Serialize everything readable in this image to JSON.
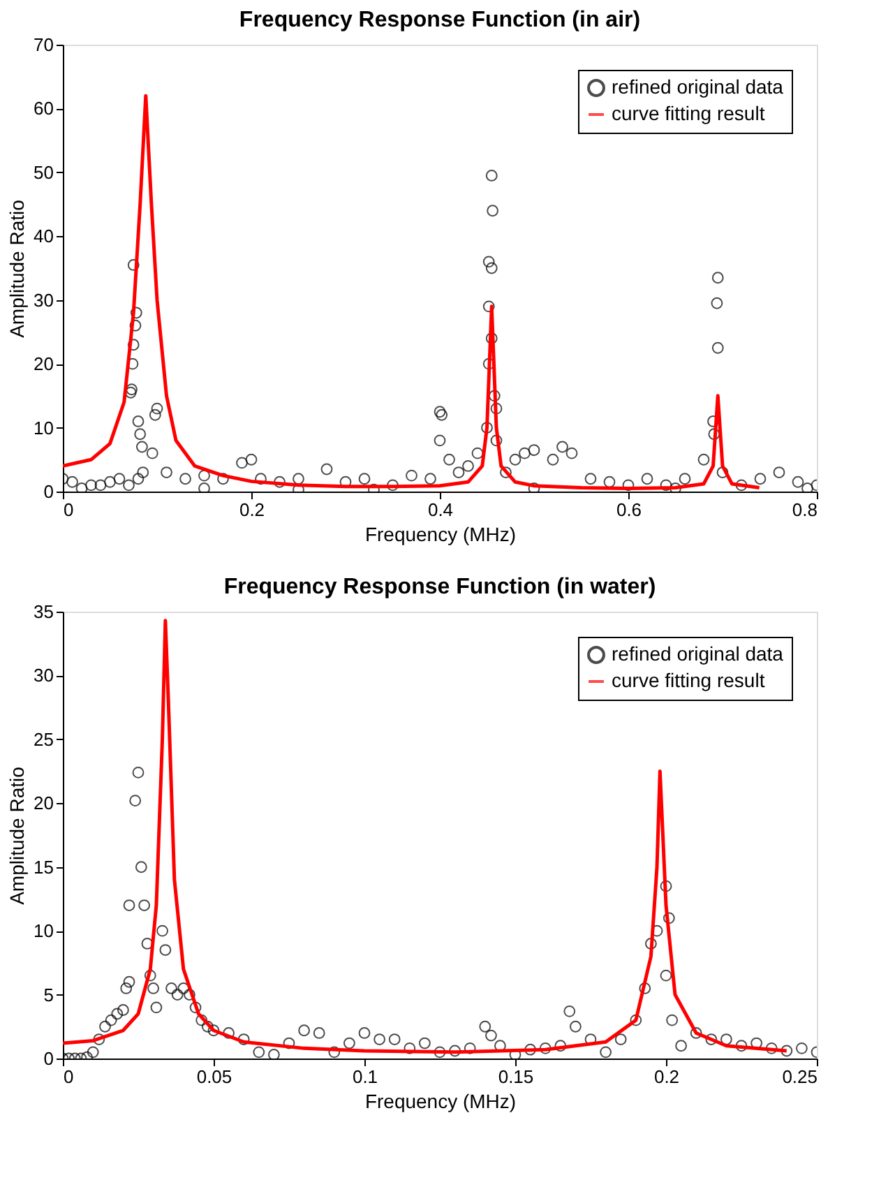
{
  "chart_data": [
    {
      "type": "scatter",
      "title": "Frequency Response Function (in air)",
      "xlabel": "Frequency (MHz)",
      "ylabel": "Amplitude Ratio",
      "xlim": [
        0,
        0.8
      ],
      "ylim": [
        0,
        70
      ],
      "xticks": [
        0,
        0.2,
        0.4,
        0.6,
        0.8
      ],
      "yticks": [
        0,
        10,
        20,
        30,
        40,
        50,
        60,
        70
      ],
      "grid": false,
      "legend": "top right",
      "series": [
        {
          "name": "refined original data",
          "marker": "circle",
          "color": "#000000",
          "x": [
            0,
            0.01,
            0.02,
            0.03,
            0.04,
            0.05,
            0.06,
            0.07,
            0.072,
            0.073,
            0.074,
            0.075,
            0.077,
            0.078,
            0.075,
            0.08,
            0.082,
            0.084,
            0.085,
            0.08,
            0.095,
            0.098,
            0.1,
            0.11,
            0.13,
            0.15,
            0.15,
            0.17,
            0.19,
            0.2,
            0.21,
            0.23,
            0.25,
            0.25,
            0.28,
            0.3,
            0.32,
            0.33,
            0.35,
            0.37,
            0.39,
            0.4,
            0.402,
            0.4,
            0.41,
            0.42,
            0.43,
            0.44,
            0.45,
            0.452,
            0.455,
            0.452,
            0.452,
            0.455,
            0.456,
            0.455,
            0.46,
            0.458,
            0.46,
            0.47,
            0.48,
            0.49,
            0.5,
            0.5,
            0.52,
            0.53,
            0.54,
            0.56,
            0.58,
            0.6,
            0.62,
            0.64,
            0.65,
            0.66,
            0.68,
            0.69,
            0.691,
            0.695,
            0.694,
            0.695,
            0.7,
            0.72,
            0.74,
            0.76,
            0.78,
            0.79,
            0.8
          ],
          "values": [
            2,
            1.5,
            0.5,
            1,
            1,
            1.5,
            2,
            1,
            15.5,
            16,
            20,
            23,
            26,
            28,
            35.5,
            11,
            9,
            7,
            3,
            2,
            6,
            12,
            13,
            3,
            2,
            2.5,
            0.5,
            2,
            4.5,
            5,
            2,
            1.5,
            2,
            0.3,
            3.5,
            1.5,
            2,
            0.3,
            1,
            2.5,
            2,
            12.5,
            12,
            8,
            5,
            3,
            4,
            6,
            10,
            20,
            24,
            29,
            36,
            35,
            44,
            49.5,
            13,
            15,
            8,
            3,
            5,
            6,
            6.5,
            0.5,
            5,
            7,
            6,
            2,
            1.5,
            1,
            2,
            1,
            0.5,
            2,
            5,
            11,
            9,
            22.5,
            29.5,
            33.5,
            3,
            1,
            2,
            3,
            1.5,
            0.5,
            1
          ]
        },
        {
          "name": "curve fitting result",
          "type": "line",
          "color": "#ff0000",
          "x": [
            0,
            0.03,
            0.05,
            0.065,
            0.075,
            0.082,
            0.088,
            0.094,
            0.1,
            0.11,
            0.12,
            0.14,
            0.17,
            0.2,
            0.25,
            0.3,
            0.35,
            0.4,
            0.43,
            0.445,
            0.45,
            0.455,
            0.46,
            0.465,
            0.48,
            0.5,
            0.55,
            0.6,
            0.65,
            0.68,
            0.69,
            0.695,
            0.7,
            0.71,
            0.739
          ],
          "values": [
            4,
            5,
            7.5,
            14,
            28,
            45,
            62,
            45,
            30,
            15,
            8,
            4,
            2.5,
            1.6,
            1,
            0.8,
            0.8,
            0.9,
            1.5,
            4,
            10,
            29,
            10,
            4,
            1.5,
            0.9,
            0.6,
            0.5,
            0.6,
            1.2,
            4,
            15,
            4,
            1.2,
            0.6
          ]
        }
      ]
    },
    {
      "type": "scatter",
      "title": "Frequency Response Function (in water)",
      "xlabel": "Frequency (MHz)",
      "ylabel": "Amplitude Ratio",
      "xlim": [
        0,
        0.25
      ],
      "ylim": [
        0,
        35
      ],
      "xticks": [
        0,
        0.05,
        0.1,
        0.15,
        0.2,
        0.25
      ],
      "yticks": [
        0,
        5,
        10,
        15,
        20,
        25,
        30,
        35
      ],
      "grid": false,
      "legend": "top right",
      "series": [
        {
          "name": "refined original data",
          "marker": "circle",
          "color": "#000000",
          "x": [
            0,
            0.002,
            0.004,
            0.006,
            0.008,
            0.01,
            0.012,
            0.014,
            0.016,
            0.018,
            0.02,
            0.021,
            0.022,
            0.022,
            0.024,
            0.025,
            0.026,
            0.027,
            0.028,
            0.029,
            0.03,
            0.031,
            0.033,
            0.034,
            0.036,
            0.038,
            0.04,
            0.042,
            0.044,
            0.046,
            0.048,
            0.05,
            0.055,
            0.06,
            0.065,
            0.07,
            0.075,
            0.08,
            0.085,
            0.09,
            0.095,
            0.1,
            0.105,
            0.11,
            0.115,
            0.12,
            0.125,
            0.13,
            0.135,
            0.14,
            0.142,
            0.145,
            0.15,
            0.155,
            0.16,
            0.165,
            0.168,
            0.17,
            0.175,
            0.18,
            0.185,
            0.19,
            0.193,
            0.195,
            0.197,
            0.2,
            0.201,
            0.2,
            0.202,
            0.205,
            0.21,
            0.215,
            0.22,
            0.225,
            0.23,
            0.235,
            0.24,
            0.245,
            0.25
          ],
          "values": [
            0,
            0,
            0,
            0,
            0.1,
            0.5,
            1.5,
            2.5,
            3,
            3.5,
            3.8,
            5.5,
            6,
            12,
            20.2,
            22.4,
            15,
            12,
            9,
            6.5,
            5.5,
            4,
            10,
            8.5,
            5.5,
            5,
            5.5,
            5,
            4,
            3,
            2.5,
            2.2,
            2,
            1.5,
            0.5,
            0.3,
            1.2,
            2.2,
            2,
            0.5,
            1.2,
            2,
            1.5,
            1.5,
            0.8,
            1.2,
            0.5,
            0.6,
            0.8,
            2.5,
            1.8,
            1,
            0.3,
            0.7,
            0.8,
            1,
            3.7,
            2.5,
            1.5,
            0.5,
            1.5,
            3,
            5.5,
            9,
            10,
            13.5,
            11,
            6.5,
            3,
            1,
            2,
            1.5,
            1.5,
            1,
            1.2,
            0.8,
            0.6,
            0.8,
            0.5
          ]
        },
        {
          "name": "curve fitting result",
          "type": "line",
          "color": "#ff0000",
          "x": [
            0,
            0.01,
            0.02,
            0.025,
            0.029,
            0.031,
            0.033,
            0.034,
            0.035,
            0.037,
            0.04,
            0.045,
            0.05,
            0.06,
            0.08,
            0.1,
            0.13,
            0.16,
            0.18,
            0.19,
            0.195,
            0.197,
            0.198,
            0.2,
            0.203,
            0.21,
            0.22,
            0.24
          ],
          "values": [
            1.2,
            1.4,
            2.2,
            3.5,
            7,
            12,
            25,
            34.3,
            28,
            14,
            7,
            3.5,
            2.2,
            1.3,
            0.8,
            0.6,
            0.5,
            0.7,
            1.3,
            3,
            8,
            15,
            22.5,
            12,
            5,
            2,
            1,
            0.6
          ]
        }
      ]
    }
  ]
}
